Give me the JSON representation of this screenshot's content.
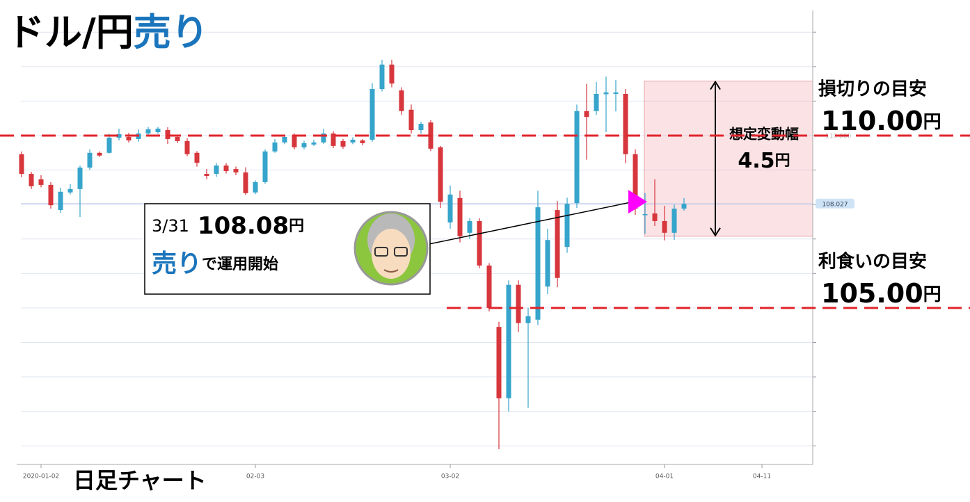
{
  "chart_data": {
    "type": "candlestick",
    "title": "ドル/円",
    "title_accent": "売り",
    "subtitle": "日足チャート",
    "categories": [
      null,
      null,
      "2020-01-02",
      null,
      null,
      null,
      null,
      null,
      null,
      null,
      null,
      null,
      null,
      null,
      null,
      null,
      null,
      null,
      null,
      null,
      null,
      null,
      null,
      null,
      "02-03",
      null,
      null,
      null,
      null,
      null,
      null,
      null,
      null,
      null,
      null,
      null,
      null,
      null,
      null,
      null,
      null,
      null,
      null,
      null,
      "03-02",
      null,
      null,
      null,
      null,
      null,
      null,
      null,
      null,
      null,
      null,
      null,
      null,
      null,
      null,
      null,
      null,
      null,
      null,
      null,
      null,
      null,
      "04-01",
      null,
      null,
      null,
      null,
      null,
      null,
      null,
      null,
      null,
      "04-11",
      null,
      null,
      null,
      null,
      null
    ],
    "open": [
      109.46,
      108.89,
      108.73,
      108.57,
      107.84,
      108.35,
      108.45,
      109.07,
      109.5,
      109.5,
      109.94,
      109.96,
      109.9,
      110.06,
      110.1,
      110.16,
      109.96,
      109.84,
      109.5,
      108.89,
      108.89,
      109.13,
      109.03,
      108.93,
      108.35,
      108.65,
      109.54,
      109.8,
      110.0,
      109.66,
      109.74,
      109.8,
      110.06,
      109.84,
      109.8,
      109.86,
      109.88,
      111.35,
      112.06,
      111.31,
      110.75,
      110.16,
      110.38,
      109.66,
      107.48,
      108.19,
      107.18,
      107.52,
      106.23,
      104.45,
      102.38,
      105.67,
      104.56,
      104.66,
      105.62,
      107.84,
      106.77,
      108.04,
      110.71,
      110.71,
      111.2,
      111.21,
      111.21,
      109.46,
      107.7,
      107.74,
      107.52,
      107.18,
      107.88,
      null,
      null,
      null,
      null,
      null,
      null,
      null,
      null,
      null,
      null,
      null,
      null,
      null
    ],
    "high": [
      109.54,
      108.95,
      108.85,
      108.65,
      108.49,
      108.59,
      109.13,
      109.6,
      109.54,
      110.05,
      110.2,
      110.08,
      110.18,
      110.25,
      110.25,
      110.24,
      110.0,
      109.92,
      109.55,
      109.03,
      109.2,
      109.2,
      109.1,
      109.08,
      108.7,
      109.6,
      109.9,
      110.02,
      110.06,
      109.85,
      109.88,
      110.2,
      110.12,
      109.9,
      109.95,
      109.9,
      111.52,
      112.2,
      112.2,
      111.4,
      110.9,
      110.4,
      110.45,
      109.7,
      108.55,
      108.4,
      107.6,
      107.6,
      106.3,
      104.6,
      105.8,
      105.8,
      105.0,
      108.4,
      107.3,
      108.1,
      108.2,
      110.9,
      111.5,
      111.55,
      111.71,
      111.61,
      111.35,
      109.6,
      108.33,
      108.73,
      107.96,
      108.0,
      108.19,
      null,
      null,
      null,
      null,
      null,
      null,
      null,
      null,
      null,
      null,
      null,
      null,
      null
    ],
    "low": [
      108.79,
      108.45,
      108.5,
      107.88,
      107.76,
      108.29,
      107.64,
      109.0,
      109.38,
      109.48,
      109.86,
      109.8,
      109.82,
      110.0,
      110.05,
      109.76,
      109.78,
      109.4,
      109.1,
      108.73,
      108.8,
      108.9,
      108.85,
      108.28,
      108.3,
      108.6,
      109.5,
      109.75,
      109.6,
      109.6,
      109.7,
      109.76,
      109.64,
      109.62,
      109.75,
      109.72,
      109.82,
      111.28,
      111.4,
      110.6,
      110.06,
      110.05,
      109.55,
      107.9,
      107.3,
      106.9,
      107.0,
      106.15,
      104.9,
      100.9,
      102.0,
      104.3,
      102.1,
      104.5,
      105.4,
      105.6,
      106.6,
      107.9,
      109.3,
      110.6,
      110.1,
      110.7,
      109.2,
      107.7,
      107.15,
      107.38,
      106.96,
      106.97,
      107.82,
      null,
      null,
      null,
      null,
      null,
      null,
      null,
      null,
      null,
      null,
      null,
      null,
      null
    ],
    "close": [
      108.89,
      108.53,
      108.57,
      107.98,
      108.37,
      108.45,
      109.07,
      109.5,
      109.42,
      109.94,
      110.04,
      109.86,
      110.06,
      110.18,
      110.2,
      109.9,
      109.84,
      109.46,
      109.21,
      108.83,
      109.13,
      108.97,
      108.93,
      108.33,
      108.65,
      109.54,
      109.8,
      109.96,
      109.66,
      109.78,
      109.8,
      110.06,
      109.7,
      109.68,
      109.88,
      109.78,
      111.35,
      112.06,
      111.51,
      110.71,
      110.16,
      110.34,
      109.62,
      108.08,
      108.29,
      107.08,
      107.52,
      106.23,
      105.0,
      102.38,
      105.67,
      104.56,
      104.76,
      107.92,
      106.97,
      105.87,
      108.02,
      110.71,
      110.54,
      111.21,
      111.25,
      111.25,
      109.46,
      107.88,
      107.72,
      107.52,
      107.18,
      107.88,
      108.02,
      null,
      null,
      null,
      null,
      null,
      null,
      null,
      null,
      null,
      null,
      null,
      null,
      null
    ],
    "up_color": "#36a4cb",
    "down_color": "#d6363c",
    "ylim": [
      100.46,
      113.63
    ],
    "yticks": [
      101,
      102,
      103,
      104,
      105,
      106,
      107,
      108,
      109,
      110,
      111,
      112,
      113
    ],
    "grid": true,
    "price_markers": [
      108.027,
      {
        "value": 110,
        "label": "110.000"
      }
    ],
    "stop_loss": {
      "label": "損切りの目安",
      "value": 110,
      "value_label": "110.00",
      "unit": "円"
    },
    "take_profit": {
      "label": "利食いの目安",
      "value": 105,
      "value_label": "105.00",
      "unit": "円"
    },
    "range": {
      "label": "想定変動幅",
      "value": 4.5,
      "unit": "円",
      "low": 107.08
    },
    "entry": {
      "date": "3/31",
      "value": 108.08,
      "value_label": "108.08",
      "unit": "円",
      "action": "売り",
      "text": "で運用開始"
    }
  }
}
